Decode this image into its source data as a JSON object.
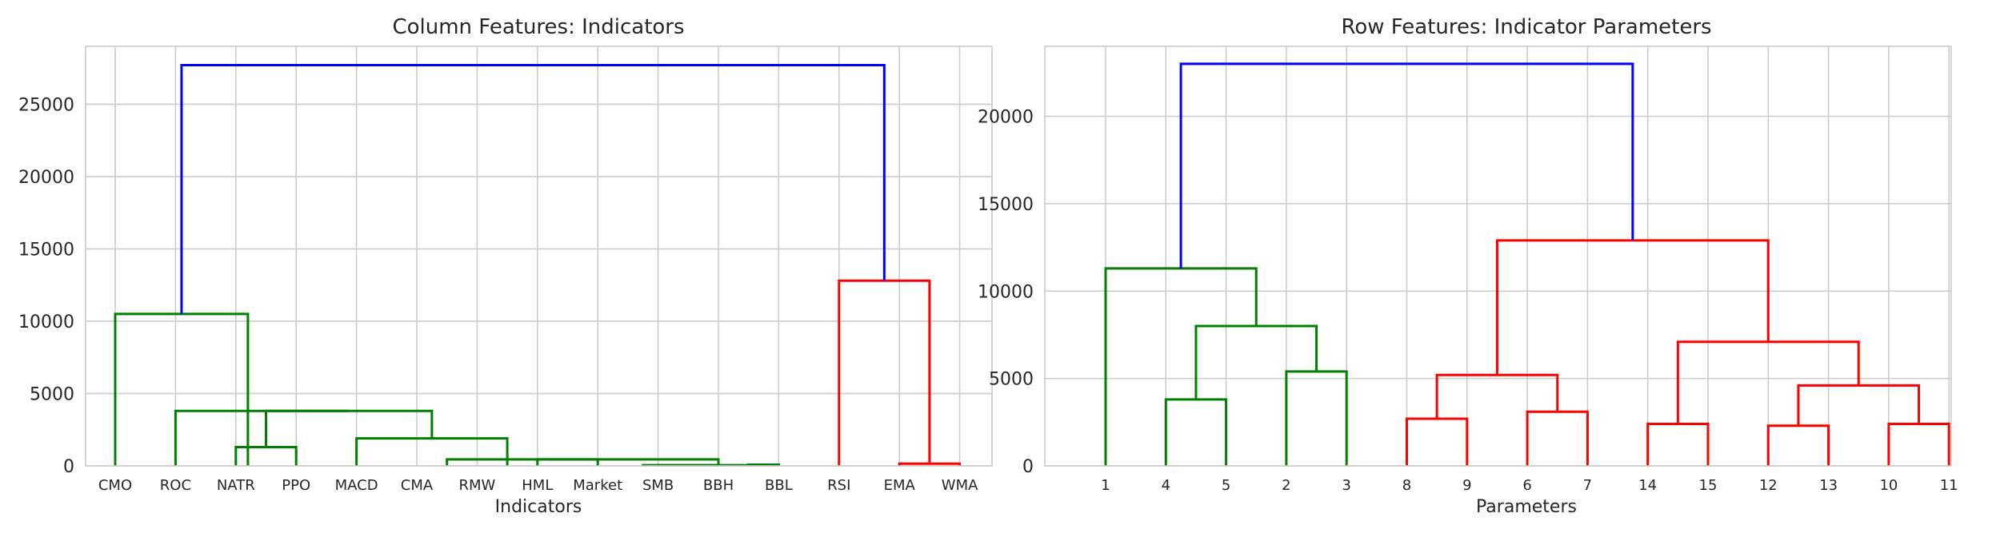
{
  "chart_data": [
    {
      "type": "dendrogram",
      "title": "Column Features: Indicators",
      "xlabel": "Indicators",
      "ylabel": "",
      "ylim": [
        0,
        29000
      ],
      "yticks": [
        0,
        5000,
        10000,
        15000,
        20000,
        25000
      ],
      "leaves": [
        "CMO",
        "ROC",
        "NATR",
        "PPO",
        "MACD",
        "CMA",
        "RMW",
        "HML",
        "Market",
        "SMB",
        "BBH",
        "BBL",
        "RSI",
        "EMA",
        "WMA"
      ],
      "links": [
        {
          "l": 2,
          "r": 3,
          "h": 1300,
          "color": "#008000"
        },
        {
          "l": 13,
          "r": 14,
          "h": 150,
          "color": "#ff0000"
        },
        {
          "l": 12,
          "r": 13.5,
          "h": 12800,
          "color": "#ff0000"
        },
        {
          "l": 7,
          "r": 8,
          "h": 450,
          "color": "#008000"
        },
        {
          "l": 9,
          "r": 10,
          "h": 50,
          "color": "#008000"
        },
        {
          "l": 10.5,
          "r": 11,
          "h": 80,
          "color": "#008000"
        },
        {
          "l": 8.75,
          "r": 11,
          "h": 50,
          "color": "#008000"
        },
        {
          "l": 5.5,
          "r": 10,
          "h": 450,
          "color": "#008000"
        },
        {
          "l": 4,
          "r": 6.5,
          "h": 1900,
          "color": "#008000"
        },
        {
          "l": 2.5,
          "r": 5.25,
          "h": 3800,
          "color": "#008000"
        },
        {
          "l": 1,
          "r": 3.875,
          "h": 3800,
          "color": "#008000"
        },
        {
          "l": 0,
          "r": 2.2,
          "h": 10500,
          "color": "#008000"
        },
        {
          "l": 1.1,
          "r": 12.75,
          "h": 27700,
          "color": "#0000ff"
        }
      ]
    },
    {
      "type": "dendrogram",
      "title": "Row Features: Indicator Parameters",
      "xlabel": "Parameters",
      "ylabel": "",
      "ylim": [
        0,
        24000
      ],
      "yticks": [
        0,
        5000,
        10000,
        15000,
        20000
      ],
      "leaves": [
        "1",
        "4",
        "5",
        "2",
        "3",
        "8",
        "9",
        "6",
        "7",
        "14",
        "15",
        "12",
        "13",
        "10",
        "11"
      ],
      "links": [
        {
          "l": 1,
          "r": 2,
          "h": 3800,
          "color": "#008000"
        },
        {
          "l": 3,
          "r": 4,
          "h": 5400,
          "color": "#008000"
        },
        {
          "l": 1.5,
          "r": 3.5,
          "h": 8000,
          "color": "#008000"
        },
        {
          "l": 0,
          "r": 2.5,
          "h": 11300,
          "color": "#008000"
        },
        {
          "l": 5,
          "r": 6,
          "h": 2700,
          "color": "#ff0000"
        },
        {
          "l": 7,
          "r": 8,
          "h": 3100,
          "color": "#ff0000"
        },
        {
          "l": 5.5,
          "r": 7.5,
          "h": 5200,
          "color": "#ff0000"
        },
        {
          "l": 9,
          "r": 10,
          "h": 2400,
          "color": "#ff0000"
        },
        {
          "l": 11,
          "r": 12,
          "h": 2300,
          "color": "#ff0000"
        },
        {
          "l": 13,
          "r": 14,
          "h": 2400,
          "color": "#ff0000"
        },
        {
          "l": 11.5,
          "r": 13.5,
          "h": 4600,
          "color": "#ff0000"
        },
        {
          "l": 9.5,
          "r": 12.5,
          "h": 7100,
          "color": "#ff0000"
        },
        {
          "l": 6.5,
          "r": 11,
          "h": 12900,
          "color": "#ff0000"
        },
        {
          "l": 1.25,
          "r": 8.75,
          "h": 23000,
          "color": "#0000ff"
        }
      ]
    }
  ]
}
